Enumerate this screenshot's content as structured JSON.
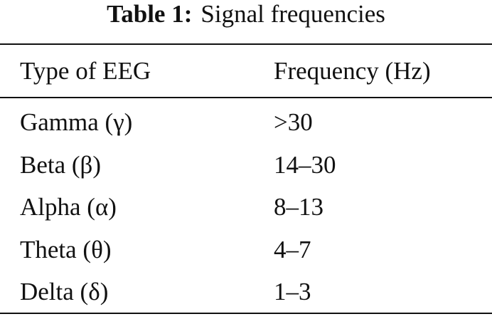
{
  "caption": {
    "label": "Table 1:",
    "title": "Signal frequencies"
  },
  "table": {
    "header": [
      "Type of EEG",
      "Frequency (Hz)"
    ],
    "rows": [
      [
        "Gamma (γ)",
        ">30"
      ],
      [
        "Beta (β)",
        "14–30"
      ],
      [
        "Alpha (α)",
        "8–13"
      ],
      [
        "Theta (θ)",
        "4–7"
      ],
      [
        "Delta (δ)",
        "1–3"
      ]
    ]
  }
}
